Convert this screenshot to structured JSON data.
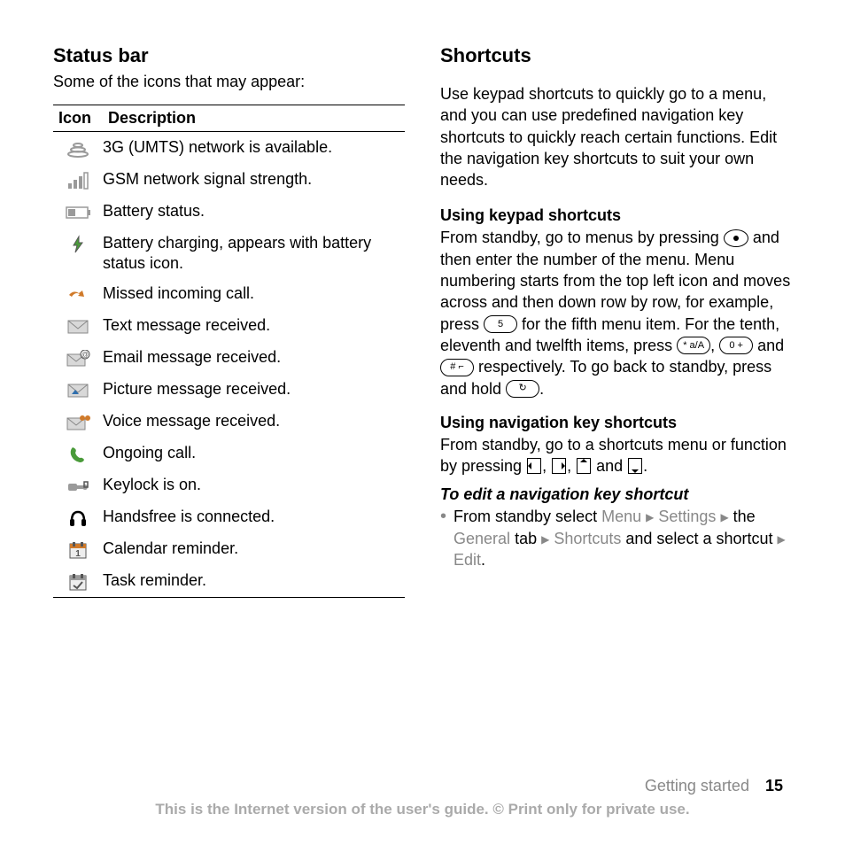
{
  "left": {
    "heading": "Status bar",
    "intro": "Some of the icons that may appear:",
    "col_icon": "Icon",
    "col_desc": "Description",
    "rows": [
      {
        "icon": "umts",
        "desc": "3G (UMTS) network is available."
      },
      {
        "icon": "signal",
        "desc": "GSM network signal strength."
      },
      {
        "icon": "battery",
        "desc": "Battery status."
      },
      {
        "icon": "charging",
        "desc": "Battery charging, appears with battery status icon."
      },
      {
        "icon": "missed",
        "desc": "Missed incoming call."
      },
      {
        "icon": "sms",
        "desc": "Text message received."
      },
      {
        "icon": "email",
        "desc": "Email message received."
      },
      {
        "icon": "mms",
        "desc": "Picture message received."
      },
      {
        "icon": "voice",
        "desc": "Voice message received."
      },
      {
        "icon": "call",
        "desc": "Ongoing call."
      },
      {
        "icon": "keylock",
        "desc": "Keylock is on."
      },
      {
        "icon": "handsfree",
        "desc": "Handsfree is connected."
      },
      {
        "icon": "calendar",
        "desc": "Calendar reminder."
      },
      {
        "icon": "task",
        "desc": "Task reminder."
      }
    ]
  },
  "right": {
    "heading": "Shortcuts",
    "intro": "Use keypad shortcuts to quickly go to a menu, and you can use predefined navigation key shortcuts to quickly reach certain functions. Edit the navigation key shortcuts to suit your own needs.",
    "sub1": "Using keypad shortcuts",
    "p1a": "From standby, go to menus by pressing ",
    "p1b": " and then enter the number of the menu. Menu numbering starts from the top left icon and moves across and then down row by row, for example, press ",
    "key5": "5",
    "p1c": " for the fifth menu item. For the tenth, eleventh and twelfth items, press ",
    "keystar": "* a/A",
    "p1d": ", ",
    "key0": "0 +",
    "p1e": " and ",
    "keyhash": "# ⌐",
    "p1f": " respectively. To go back to standby, press and hold ",
    "keyback": "↻",
    "p1g": ".",
    "sub2": "Using navigation key shortcuts",
    "p2a": "From standby, go to a shortcuts menu or function by pressing ",
    "p2b": ", ",
    "p2c": ", ",
    "p2d": " and ",
    "p2e": ".",
    "sub3": "To edit a navigation key shortcut",
    "bul_a": "From standby select ",
    "bul_menu": "Menu",
    "bul_settings": "Settings",
    "bul_b": " the ",
    "bul_general": "General",
    "bul_c": " tab ",
    "bul_shortcuts": "Shortcuts",
    "bul_d": " and select a shortcut ",
    "bul_edit": "Edit",
    "bul_e": "."
  },
  "footer": {
    "section": "Getting started",
    "page": "15",
    "notice": "This is the Internet version of the user's guide. © Print only for private use."
  },
  "icon_colors": {
    "gray": "#9a9a9a",
    "dark": "#555",
    "blue": "#2f6fae",
    "green": "#4a9b3a",
    "orange": "#d07a2a",
    "envelope_fill": "#d8d8d8",
    "envelope_stroke": "#888"
  }
}
